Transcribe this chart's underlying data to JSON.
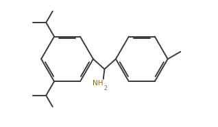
{
  "background_color": "#ffffff",
  "bond_color": "#3a3a3a",
  "nh2_color": "#8B6914",
  "line_width": 1.4,
  "figsize": [
    3.18,
    1.86
  ],
  "dpi": 100,
  "xlim": [
    0.0,
    9.5
  ],
  "ylim": [
    0.2,
    5.8
  ]
}
